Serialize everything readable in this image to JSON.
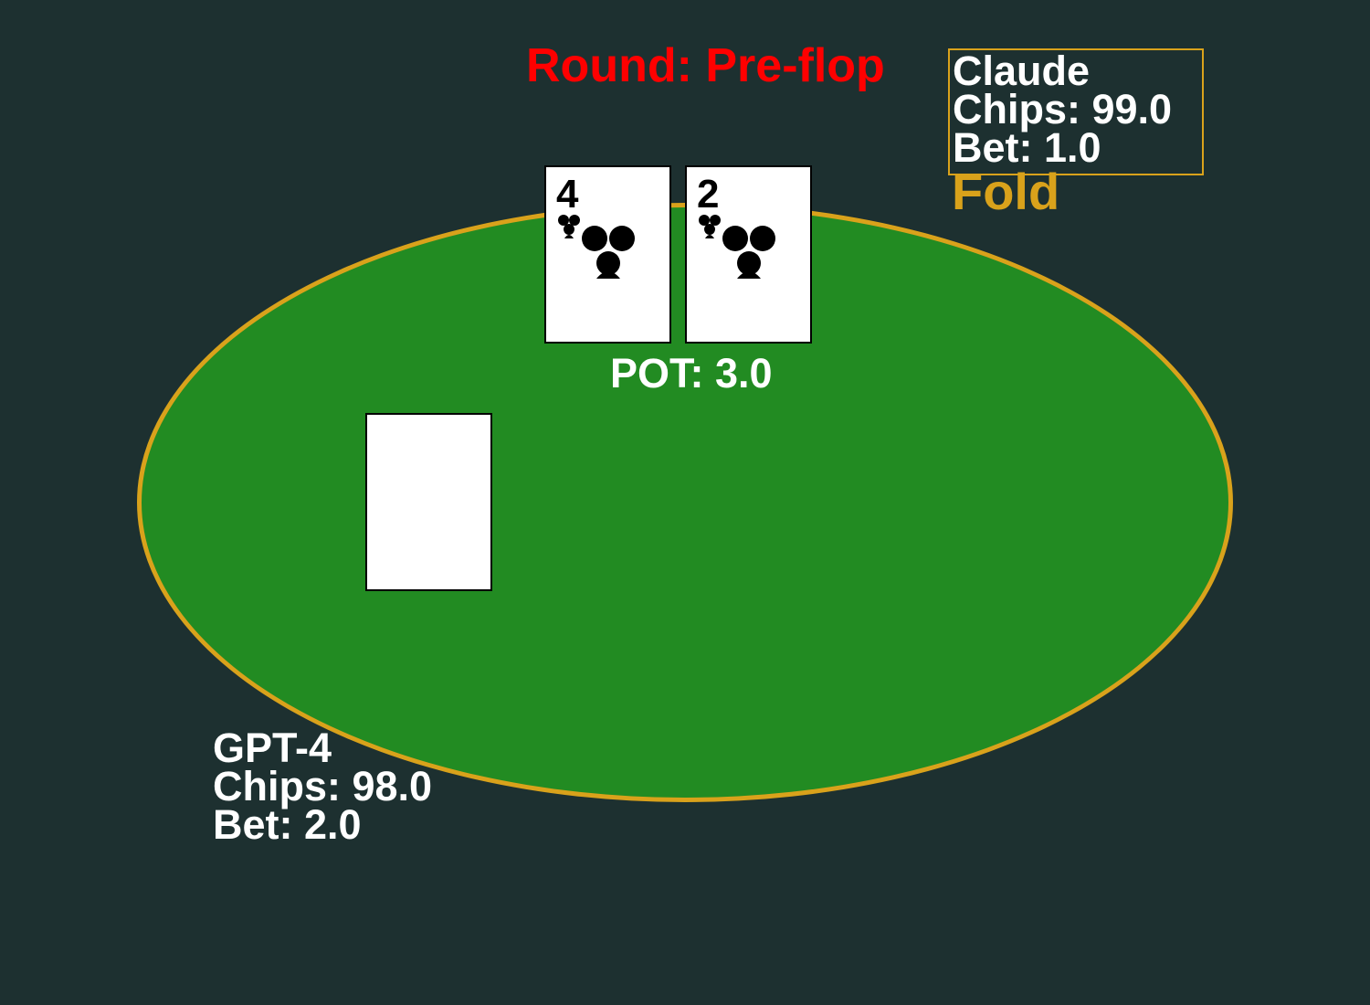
{
  "round_label": "Round: Pre-flop",
  "pot_label": "POT: 3.0",
  "players": {
    "claude": {
      "name": "Claude",
      "chips": "Chips: 99.0",
      "bet": "Bet: 1.0",
      "action": "Fold"
    },
    "gpt4": {
      "name": "GPT-4",
      "chips": "Chips: 98.0",
      "bet": "Bet: 2.0"
    }
  },
  "cards": [
    {
      "rank": "4",
      "suit": "clubs-icon"
    },
    {
      "rank": "2",
      "suit": "clubs-icon"
    }
  ],
  "colors": {
    "background": "#1d3030",
    "felt": "#228b22",
    "rail": "#d9a21b",
    "round_text": "#ff0000",
    "action_text": "#d9a21b"
  }
}
